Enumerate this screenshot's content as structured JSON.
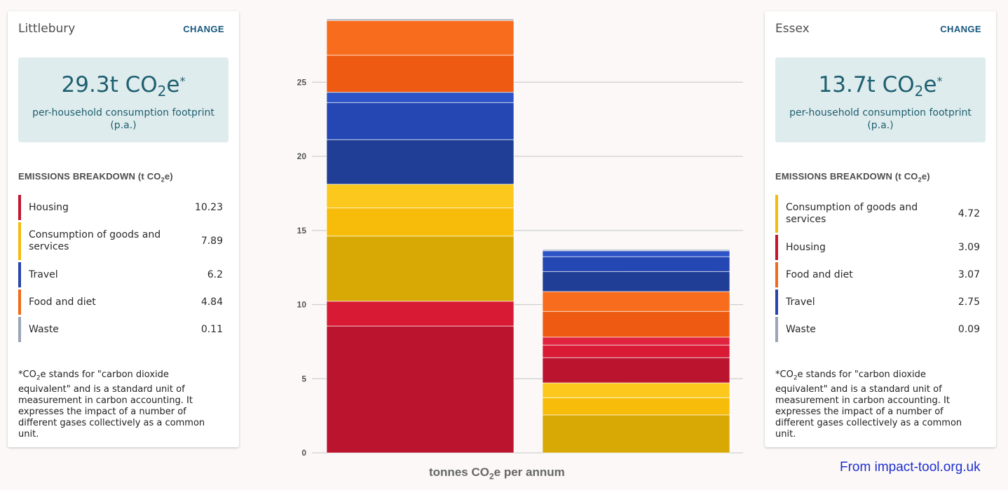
{
  "colors": {
    "housing": "#c0172f",
    "consumption": "#f4bb0d",
    "travel": "#2845ad",
    "food": "#f06a1a",
    "waste": "#9aa5b6"
  },
  "left_card": {
    "area": "Littlebury",
    "change_label": "CHANGE",
    "total_value": "29.3t CO",
    "total_sub": "2",
    "total_suffix": "e",
    "total_sup": "*",
    "total_desc": "per-household consumption footprint (p.a.)",
    "breakdown_title": "EMISSIONS BREAKDOWN (t CO",
    "breakdown_sub": "2",
    "breakdown_suffix": "e)",
    "items": [
      {
        "label": "Housing",
        "value": "10.23",
        "color": "#c0172f"
      },
      {
        "label": "Consumption of goods and services",
        "value": "7.89",
        "color": "#f4bb0d"
      },
      {
        "label": "Travel",
        "value": "6.2",
        "color": "#2845ad"
      },
      {
        "label": "Food and diet",
        "value": "4.84",
        "color": "#f06a1a"
      },
      {
        "label": "Waste",
        "value": "0.11",
        "color": "#9aa5b6"
      }
    ],
    "footnote_a": "*CO",
    "footnote_sub": "2",
    "footnote_b": "e stands for \"carbon dioxide equivalent\" and is a standard unit of measurement in carbon accounting. It expresses the impact of a number of different gases collectively as a common unit."
  },
  "right_card": {
    "area": "Essex",
    "change_label": "CHANGE",
    "total_value": "13.7t CO",
    "total_sub": "2",
    "total_suffix": "e",
    "total_sup": "*",
    "total_desc": "per-household consumption footprint (p.a.)",
    "breakdown_title": "EMISSIONS BREAKDOWN (t CO",
    "breakdown_sub": "2",
    "breakdown_suffix": "e)",
    "items": [
      {
        "label": "Consumption of goods and services",
        "value": "4.72",
        "color": "#f4bb0d"
      },
      {
        "label": "Housing",
        "value": "3.09",
        "color": "#c0172f"
      },
      {
        "label": "Food and diet",
        "value": "3.07",
        "color": "#f06a1a"
      },
      {
        "label": "Travel",
        "value": "2.75",
        "color": "#2845ad"
      },
      {
        "label": "Waste",
        "value": "0.09",
        "color": "#9aa5b6"
      }
    ],
    "footnote_a": "*CO",
    "footnote_sub": "2",
    "footnote_b": "e stands for \"carbon dioxide equivalent\" and is a standard unit of measurement in carbon accounting. It expresses the impact of a number of different gases collectively as a common unit."
  },
  "chart_data": {
    "type": "bar",
    "stacked": true,
    "categories": [
      "Littlebury",
      "Essex"
    ],
    "ylim": [
      0,
      30
    ],
    "yticks": [
      0,
      5,
      10,
      15,
      20,
      25
    ],
    "grid": true,
    "xlabel": "tonnes CO",
    "xlabel_sub": "2",
    "xlabel_suffix": "e per annum",
    "bars": [
      {
        "category": "Littlebury",
        "segments": [
          {
            "category": "Housing",
            "parts": [
              {
                "value": 8.55,
                "shade": "#bb142f"
              },
              {
                "value": 1.68,
                "shade": "#d91a35"
              }
            ]
          },
          {
            "category": "Consumption of goods and services",
            "parts": [
              {
                "value": 4.39,
                "shade": "#d8a904"
              },
              {
                "value": 1.9,
                "shade": "#f7bc0a"
              },
              {
                "value": 1.6,
                "shade": "#fcc81d"
              }
            ]
          },
          {
            "category": "Travel",
            "parts": [
              {
                "value": 3.0,
                "shade": "#203e96"
              },
              {
                "value": 2.5,
                "shade": "#2547b3"
              },
              {
                "value": 0.7,
                "shade": "#2d54c6"
              }
            ]
          },
          {
            "category": "Food and diet",
            "parts": [
              {
                "value": 2.5,
                "shade": "#ee5a11"
              },
              {
                "value": 2.34,
                "shade": "#f86d1d"
              }
            ]
          },
          {
            "category": "Waste",
            "parts": [
              {
                "value": 0.11,
                "shade": "#a6b0c1"
              }
            ]
          }
        ]
      },
      {
        "category": "Essex",
        "segments": [
          {
            "category": "Consumption of goods and services",
            "parts": [
              {
                "value": 2.56,
                "shade": "#d8a904"
              },
              {
                "value": 1.16,
                "shade": "#f7bc0a"
              },
              {
                "value": 1.0,
                "shade": "#fcc81d"
              }
            ]
          },
          {
            "category": "Housing",
            "parts": [
              {
                "value": 1.7,
                "shade": "#bb142f"
              },
              {
                "value": 0.85,
                "shade": "#d91a35"
              },
              {
                "value": 0.54,
                "shade": "#e02440"
              }
            ]
          },
          {
            "category": "Food and diet",
            "parts": [
              {
                "value": 1.73,
                "shade": "#ee5a11"
              },
              {
                "value": 1.34,
                "shade": "#f86d1d"
              }
            ]
          },
          {
            "category": "Travel",
            "parts": [
              {
                "value": 1.35,
                "shade": "#203e96"
              },
              {
                "value": 1.0,
                "shade": "#2547b3"
              },
              {
                "value": 0.4,
                "shade": "#2d54c6"
              }
            ]
          },
          {
            "category": "Waste",
            "parts": [
              {
                "value": 0.09,
                "shade": "#a6b0c1"
              }
            ]
          }
        ]
      }
    ]
  },
  "source": "From impact-tool.org.uk"
}
